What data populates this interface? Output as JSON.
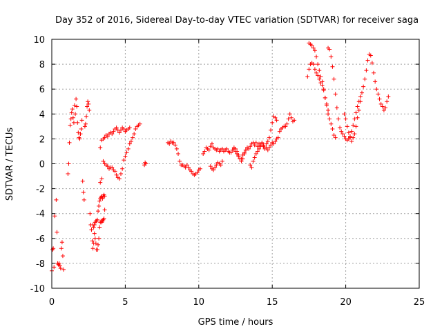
{
  "chart_data": {
    "type": "scatter",
    "title": "Day 352 of 2016, Sidereal Day-to-day VTEC variation (SDTVAR) for receiver saga",
    "xlabel": "GPS time / hours",
    "ylabel": "SDTVAR / TECUs",
    "xlim": [
      0,
      25
    ],
    "ylim": [
      -10,
      10
    ],
    "xticks": [
      0,
      5,
      10,
      15,
      20,
      25
    ],
    "yticks": [
      -10,
      -8,
      -6,
      -4,
      -2,
      0,
      2,
      4,
      6,
      8,
      10
    ],
    "grid": true,
    "marker": "+",
    "color": "#ff0000",
    "series": [
      {
        "name": "SDTVAR",
        "x": [
          0.0,
          0.05,
          0.1,
          0.15,
          0.2,
          0.3,
          0.35,
          0.4,
          0.45,
          0.5,
          0.55,
          0.6,
          0.65,
          0.7,
          0.75,
          0.8,
          1.1,
          1.15,
          1.2,
          1.25,
          1.3,
          1.35,
          1.4,
          1.45,
          1.5,
          1.55,
          1.6,
          1.65,
          1.7,
          1.75,
          1.8,
          1.85,
          1.9,
          1.95,
          2.0,
          2.05,
          2.1,
          2.15,
          2.2,
          2.25,
          2.3,
          2.35,
          2.4,
          2.45,
          2.5,
          2.55,
          2.6,
          2.65,
          2.7,
          2.75,
          2.8,
          2.85,
          2.9,
          2.95,
          3.0,
          3.05,
          3.1,
          3.15,
          3.2,
          3.25,
          3.3,
          3.35,
          3.4,
          3.45,
          3.5,
          3.55,
          3.6,
          2.8,
          2.85,
          2.9,
          2.95,
          3.0,
          3.05,
          3.1,
          3.15,
          3.2,
          3.25,
          3.3,
          3.35,
          3.4,
          3.45,
          3.5,
          3.55,
          3.6,
          3.3,
          3.4,
          3.5,
          3.6,
          3.7,
          3.8,
          3.9,
          4.0,
          4.1,
          4.2,
          4.3,
          4.4,
          4.5,
          4.6,
          4.7,
          4.8,
          4.9,
          5.0,
          5.1,
          5.2,
          5.3,
          5.4,
          5.5,
          5.6,
          5.7,
          5.8,
          5.9,
          6.0,
          3.3,
          3.4,
          3.5,
          3.6,
          3.7,
          3.8,
          3.9,
          4.0,
          4.1,
          4.2,
          4.3,
          4.4,
          4.5,
          4.6,
          4.7,
          4.8,
          4.9,
          5.0,
          5.1,
          5.2,
          5.3,
          6.3,
          6.35,
          6.4,
          7.9,
          8.0,
          8.1,
          8.2,
          8.3,
          8.4,
          8.5,
          8.6,
          8.7,
          8.8,
          8.9,
          9.0,
          9.1,
          9.2,
          9.3,
          9.4,
          9.5,
          9.6,
          9.7,
          9.8,
          9.9,
          10.0,
          10.1,
          10.3,
          10.4,
          10.5,
          10.6,
          10.7,
          10.8,
          10.9,
          11.0,
          11.1,
          11.2,
          11.3,
          11.4,
          11.5,
          11.6,
          11.7,
          11.8,
          11.9,
          12.0,
          12.1,
          12.2,
          12.3,
          12.4,
          12.5,
          12.6,
          12.7,
          12.8,
          12.9,
          13.0,
          13.1,
          13.2,
          13.3,
          10.8,
          10.9,
          11.0,
          11.1,
          11.2,
          11.3,
          11.4,
          11.5,
          11.6,
          12.4,
          12.5,
          12.6,
          12.7,
          12.8,
          12.9,
          13.0,
          13.1,
          13.2,
          13.3,
          13.4,
          13.5,
          13.6,
          13.7,
          13.8,
          13.9,
          14.0,
          14.1,
          14.2,
          14.3,
          14.4,
          14.5,
          14.6,
          14.7,
          14.8,
          14.9,
          15.0,
          15.1,
          15.2,
          15.3,
          13.5,
          13.6,
          13.7,
          13.8,
          13.9,
          14.0,
          14.1,
          14.2,
          14.3,
          14.4,
          14.5,
          14.6,
          14.7,
          14.8,
          14.9,
          15.0,
          15.1,
          15.2,
          15.3,
          15.4,
          15.5,
          15.6,
          15.7,
          15.8,
          15.9,
          16.0,
          16.1,
          16.2,
          16.3,
          16.4,
          16.5,
          17.4,
          17.5,
          17.6,
          17.7,
          17.8,
          17.9,
          18.0,
          18.1,
          18.2,
          18.3,
          18.4,
          18.5,
          18.6,
          18.7,
          18.8,
          18.9,
          19.0,
          19.1,
          19.2,
          19.3,
          17.5,
          17.6,
          17.7,
          17.8,
          17.9,
          18.0,
          18.1,
          18.2,
          18.3,
          18.4,
          18.5,
          18.6,
          18.7,
          18.8,
          18.8,
          18.9,
          19.0,
          19.1,
          19.2,
          19.3,
          19.4,
          19.5,
          19.6,
          19.7,
          19.8,
          19.9,
          20.0,
          20.1,
          20.2,
          20.3,
          20.4,
          19.9,
          20.0,
          20.1,
          20.2,
          20.3,
          20.4,
          20.5,
          20.6,
          20.7,
          20.8,
          20.9,
          21.0,
          21.1,
          21.2,
          21.3,
          21.4,
          21.5,
          21.6,
          21.7,
          21.8,
          21.9,
          22.0,
          22.1,
          22.2,
          22.3,
          22.4,
          22.5,
          22.6,
          22.7,
          22.8,
          22.9,
          20.3,
          20.4,
          20.5,
          20.6,
          20.7,
          20.8,
          20.9,
          21.0
        ],
        "y": [
          -8.6,
          -6.9,
          -6.8,
          -8.3,
          -4.2,
          -2.9,
          -5.5,
          -8.0,
          -8.1,
          -8.0,
          -8.2,
          -8.4,
          -6.8,
          -6.3,
          -7.4,
          -8.5,
          -0.8,
          0.0,
          1.7,
          3.1,
          3.6,
          4.1,
          4.4,
          3.7,
          3.3,
          4.7,
          4.0,
          5.2,
          4.6,
          3.3,
          2.5,
          2.1,
          2.0,
          2.4,
          2.8,
          3.5,
          -1.4,
          -2.3,
          -2.9,
          3.0,
          3.2,
          3.8,
          4.6,
          5.0,
          4.8,
          4.3,
          -4.0,
          -4.9,
          -5.3,
          -6.2,
          -6.8,
          -6.4,
          -4.9,
          -4.7,
          -4.6,
          -4.6,
          -4.5,
          -3.8,
          -3.4,
          -3.0,
          -2.8,
          -2.7,
          -2.6,
          -2.8,
          -2.6,
          -2.5,
          -2.6,
          -4.9,
          -5.1,
          -5.6,
          -6.0,
          -6.4,
          -6.9,
          -6.9,
          -6.5,
          -6.0,
          -5.1,
          -4.7,
          -4.6,
          -4.7,
          -4.6,
          -4.5,
          -4.4,
          -3.7,
          -1.5,
          -1.2,
          0.2,
          0.0,
          -0.1,
          -0.2,
          -0.4,
          -0.3,
          -0.3,
          -0.5,
          -0.6,
          -0.9,
          -1.1,
          -1.2,
          -0.8,
          -0.4,
          0.3,
          0.6,
          0.9,
          1.2,
          1.6,
          1.8,
          2.1,
          2.4,
          2.8,
          3.0,
          3.1,
          3.2,
          1.3,
          1.9,
          2.0,
          2.1,
          2.3,
          2.2,
          2.4,
          2.5,
          2.4,
          2.6,
          2.8,
          2.9,
          2.7,
          2.5,
          2.7,
          2.9,
          2.8,
          2.6,
          2.7,
          2.8,
          2.9,
          -0.1,
          0.1,
          0.0,
          1.7,
          1.6,
          1.8,
          1.7,
          1.7,
          1.5,
          1.2,
          0.8,
          0.2,
          -0.1,
          -0.1,
          -0.2,
          -0.3,
          -0.1,
          -0.3,
          -0.5,
          -0.6,
          -0.8,
          -0.9,
          -0.8,
          -0.7,
          -0.5,
          -0.4,
          0.8,
          1.0,
          1.3,
          1.2,
          1.1,
          1.4,
          1.6,
          1.3,
          1.2,
          1.1,
          1.2,
          1.0,
          1.1,
          1.2,
          1.0,
          1.1,
          1.2,
          1.0,
          0.9,
          0.9,
          1.1,
          1.3,
          1.2,
          1.0,
          0.7,
          0.4,
          0.2,
          0.4,
          0.8,
          1.1,
          1.3,
          -0.2,
          -0.4,
          -0.5,
          -0.3,
          -0.1,
          0.1,
          0.0,
          -0.1,
          0.2,
          1.2,
          1.0,
          0.8,
          0.6,
          0.4,
          0.4,
          0.7,
          0.9,
          1.1,
          1.3,
          1.2,
          1.4,
          1.6,
          1.7,
          1.5,
          1.7,
          1.4,
          1.6,
          1.5,
          1.7,
          1.5,
          1.3,
          1.6,
          1.8,
          2.1,
          2.7,
          3.3,
          3.8,
          3.7,
          3.5,
          -0.1,
          -0.3,
          0.2,
          0.5,
          0.8,
          1.0,
          1.2,
          1.4,
          1.6,
          1.4,
          1.2,
          1.3,
          1.1,
          1.3,
          1.5,
          1.7,
          1.6,
          1.8,
          2.0,
          2.1,
          2.6,
          2.8,
          2.9,
          3.0,
          3.0,
          3.2,
          3.6,
          4.0,
          3.7,
          3.4,
          3.5,
          7.0,
          7.6,
          8.0,
          8.1,
          8.0,
          7.6,
          7.3,
          7.1,
          6.8,
          6.5,
          6.3,
          5.9,
          5.3,
          4.8,
          4.3,
          3.6,
          3.2,
          2.8,
          2.3,
          2.1,
          9.7,
          9.6,
          9.5,
          9.3,
          9.1,
          8.6,
          8.0,
          7.5,
          7.0,
          6.6,
          6.0,
          5.3,
          4.7,
          4.0,
          9.3,
          9.2,
          8.6,
          7.8,
          6.8,
          5.6,
          4.5,
          3.6,
          2.9,
          2.6,
          2.4,
          2.2,
          2.0,
          1.9,
          2.0,
          2.2,
          2.6,
          4.0,
          3.6,
          3.0,
          2.5,
          2.1,
          1.8,
          2.1,
          2.4,
          3.0,
          3.7,
          4.3,
          5.0,
          5.7,
          6.2,
          6.8,
          7.5,
          8.3,
          8.8,
          8.7,
          8.1,
          7.3,
          6.6,
          6.0,
          5.6,
          5.2,
          4.8,
          4.6,
          4.3,
          4.5,
          5.0,
          5.4,
          2.2,
          2.6,
          3.1,
          3.6,
          4.1,
          4.6,
          5.0,
          5.4
        ]
      }
    ]
  }
}
